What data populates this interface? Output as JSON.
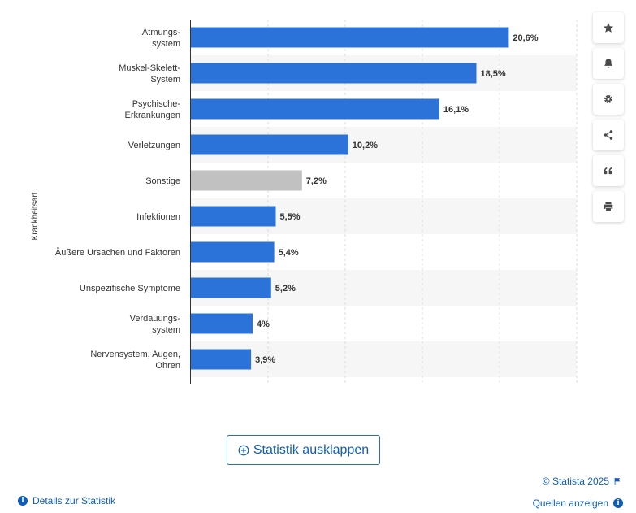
{
  "chart_data": {
    "type": "bar",
    "orientation": "horizontal",
    "categories": [
      "Atmungs-\nsystem",
      "Muskel-Skelett-\nSystem",
      "Psychische-\nErkrankungen",
      "Verletzungen",
      "Sonstige",
      "Infektionen",
      "Äußere Ursachen und Faktoren",
      "Unspezifische Symptome",
      "Verdauungs-\nsystem",
      "Nervensystem, Augen,\nOhren"
    ],
    "values": [
      20.6,
      18.5,
      16.1,
      10.2,
      7.2,
      5.5,
      5.4,
      5.2,
      4,
      3.9
    ],
    "value_labels": [
      "20,6%",
      "18,5%",
      "16,1%",
      "10,2%",
      "7,2%",
      "5,5%",
      "5,4%",
      "5,2%",
      "4%",
      "3,9%"
    ],
    "highlight_index": 4,
    "bar_color": "#2b73d9",
    "highlight_color": "#c1c1c1",
    "ylabel": "Krankheitsart",
    "xlim": [
      0,
      25
    ],
    "grid": true,
    "legend": "none"
  },
  "toolbar": {
    "items": [
      {
        "icon": "star-icon",
        "label": "Favorit"
      },
      {
        "icon": "bell-icon",
        "label": "Benachrichtigung"
      },
      {
        "icon": "gear-icon",
        "label": "Einstellungen"
      },
      {
        "icon": "share-icon",
        "label": "Teilen"
      },
      {
        "icon": "quote-icon",
        "label": "Zitieren"
      },
      {
        "icon": "print-icon",
        "label": "Drucken"
      }
    ]
  },
  "expand_button": {
    "label": "Statistik ausklappen"
  },
  "footer": {
    "copyright": "© Statista 2025",
    "details": "Details zur Statistik",
    "sources": "Quellen anzeigen"
  },
  "colors": {
    "link": "#0f5cb8",
    "accent": "#2b73d9"
  }
}
